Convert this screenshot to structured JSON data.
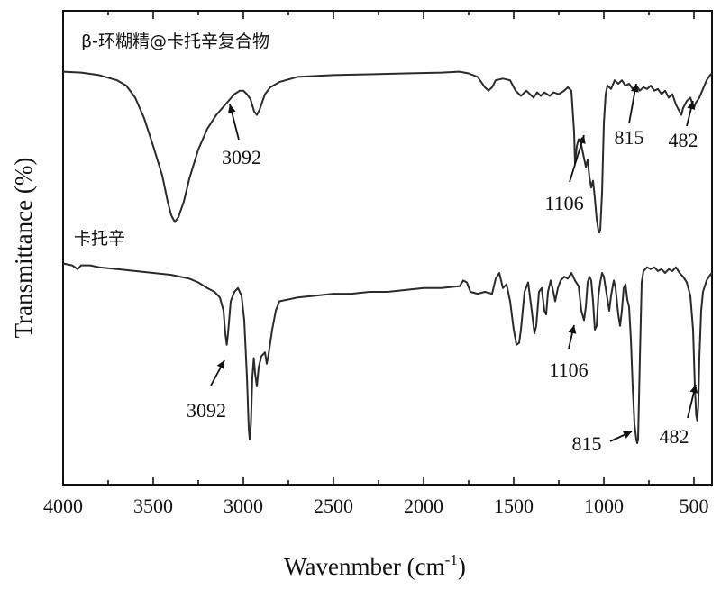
{
  "chart_data": {
    "type": "line",
    "title": "",
    "xlabel": "Wavenmber (cm",
    "xlabel_sup": "-1",
    "xlabel_close": ")",
    "ylabel": "Transmittance (%)",
    "xlim": [
      4000,
      400
    ],
    "x_reversed": true,
    "x_ticks": [
      4000,
      3500,
      3000,
      2500,
      2000,
      1500,
      1000,
      500
    ],
    "y_ticks_visible": false,
    "grid": false,
    "series": [
      {
        "name": "β-环糊精@卡托辛复合物",
        "points": [
          [
            4000,
            0.95
          ],
          [
            3900,
            0.945
          ],
          [
            3800,
            0.93
          ],
          [
            3700,
            0.9
          ],
          [
            3650,
            0.87
          ],
          [
            3600,
            0.8
          ],
          [
            3550,
            0.68
          ],
          [
            3500,
            0.52
          ],
          [
            3450,
            0.35
          ],
          [
            3420,
            0.2
          ],
          [
            3400,
            0.12
          ],
          [
            3380,
            0.08
          ],
          [
            3360,
            0.11
          ],
          [
            3330,
            0.2
          ],
          [
            3300,
            0.33
          ],
          [
            3250,
            0.5
          ],
          [
            3200,
            0.62
          ],
          [
            3150,
            0.7
          ],
          [
            3100,
            0.76
          ],
          [
            3050,
            0.82
          ],
          [
            3020,
            0.84
          ],
          [
            3000,
            0.84
          ],
          [
            2980,
            0.82
          ],
          [
            2960,
            0.79
          ],
          [
            2940,
            0.72
          ],
          [
            2925,
            0.7
          ],
          [
            2910,
            0.73
          ],
          [
            2880,
            0.82
          ],
          [
            2850,
            0.86
          ],
          [
            2800,
            0.89
          ],
          [
            2700,
            0.92
          ],
          [
            2500,
            0.93
          ],
          [
            2300,
            0.935
          ],
          [
            2100,
            0.94
          ],
          [
            1900,
            0.945
          ],
          [
            1800,
            0.95
          ],
          [
            1750,
            0.94
          ],
          [
            1700,
            0.92
          ],
          [
            1660,
            0.86
          ],
          [
            1640,
            0.84
          ],
          [
            1620,
            0.86
          ],
          [
            1600,
            0.9
          ],
          [
            1560,
            0.91
          ],
          [
            1520,
            0.9
          ],
          [
            1490,
            0.84
          ],
          [
            1460,
            0.81
          ],
          [
            1430,
            0.84
          ],
          [
            1410,
            0.82
          ],
          [
            1390,
            0.8
          ],
          [
            1370,
            0.83
          ],
          [
            1350,
            0.81
          ],
          [
            1330,
            0.83
          ],
          [
            1300,
            0.81
          ],
          [
            1280,
            0.83
          ],
          [
            1250,
            0.82
          ],
          [
            1220,
            0.84
          ],
          [
            1200,
            0.86
          ],
          [
            1180,
            0.84
          ],
          [
            1165,
            0.6
          ],
          [
            1160,
            0.42
          ],
          [
            1150,
            0.52
          ],
          [
            1140,
            0.56
          ],
          [
            1130,
            0.55
          ],
          [
            1120,
            0.5
          ],
          [
            1110,
            0.45
          ],
          [
            1100,
            0.4
          ],
          [
            1090,
            0.44
          ],
          [
            1080,
            0.34
          ],
          [
            1070,
            0.28
          ],
          [
            1060,
            0.32
          ],
          [
            1050,
            0.22
          ],
          [
            1040,
            0.1
          ],
          [
            1030,
            0.03
          ],
          [
            1025,
            0.02
          ],
          [
            1020,
            0.03
          ],
          [
            1010,
            0.25
          ],
          [
            1000,
            0.65
          ],
          [
            990,
            0.82
          ],
          [
            980,
            0.87
          ],
          [
            960,
            0.85
          ],
          [
            940,
            0.9
          ],
          [
            920,
            0.88
          ],
          [
            900,
            0.9
          ],
          [
            880,
            0.87
          ],
          [
            860,
            0.88
          ],
          [
            840,
            0.85
          ],
          [
            820,
            0.87
          ],
          [
            800,
            0.84
          ],
          [
            780,
            0.86
          ],
          [
            760,
            0.85
          ],
          [
            740,
            0.87
          ],
          [
            720,
            0.84
          ],
          [
            700,
            0.85
          ],
          [
            680,
            0.82
          ],
          [
            660,
            0.84
          ],
          [
            640,
            0.8
          ],
          [
            620,
            0.82
          ],
          [
            600,
            0.76
          ],
          [
            580,
            0.72
          ],
          [
            570,
            0.7
          ],
          [
            560,
            0.74
          ],
          [
            540,
            0.78
          ],
          [
            520,
            0.8
          ],
          [
            500,
            0.74
          ],
          [
            490,
            0.77
          ],
          [
            470,
            0.8
          ],
          [
            450,
            0.85
          ],
          [
            430,
            0.9
          ],
          [
            410,
            0.93
          ],
          [
            400,
            0.94
          ]
        ]
      },
      {
        "name": "卡托辛",
        "points": [
          [
            4000,
            0.95
          ],
          [
            3950,
            0.94
          ],
          [
            3920,
            0.92
          ],
          [
            3900,
            0.94
          ],
          [
            3850,
            0.94
          ],
          [
            3800,
            0.93
          ],
          [
            3700,
            0.92
          ],
          [
            3600,
            0.91
          ],
          [
            3500,
            0.9
          ],
          [
            3400,
            0.89
          ],
          [
            3300,
            0.87
          ],
          [
            3250,
            0.85
          ],
          [
            3200,
            0.82
          ],
          [
            3160,
            0.8
          ],
          [
            3130,
            0.77
          ],
          [
            3110,
            0.7
          ],
          [
            3100,
            0.58
          ],
          [
            3092,
            0.52
          ],
          [
            3085,
            0.58
          ],
          [
            3070,
            0.75
          ],
          [
            3050,
            0.8
          ],
          [
            3030,
            0.82
          ],
          [
            3010,
            0.78
          ],
          [
            2995,
            0.65
          ],
          [
            2980,
            0.35
          ],
          [
            2970,
            0.08
          ],
          [
            2965,
            0.02
          ],
          [
            2958,
            0.1
          ],
          [
            2950,
            0.35
          ],
          [
            2942,
            0.45
          ],
          [
            2935,
            0.37
          ],
          [
            2925,
            0.3
          ],
          [
            2915,
            0.4
          ],
          [
            2900,
            0.46
          ],
          [
            2880,
            0.48
          ],
          [
            2870,
            0.42
          ],
          [
            2860,
            0.47
          ],
          [
            2840,
            0.6
          ],
          [
            2820,
            0.7
          ],
          [
            2800,
            0.75
          ],
          [
            2700,
            0.77
          ],
          [
            2600,
            0.78
          ],
          [
            2500,
            0.79
          ],
          [
            2400,
            0.79
          ],
          [
            2300,
            0.8
          ],
          [
            2200,
            0.8
          ],
          [
            2100,
            0.81
          ],
          [
            2000,
            0.82
          ],
          [
            1900,
            0.82
          ],
          [
            1800,
            0.83
          ],
          [
            1780,
            0.86
          ],
          [
            1760,
            0.85
          ],
          [
            1740,
            0.8
          ],
          [
            1700,
            0.79
          ],
          [
            1660,
            0.8
          ],
          [
            1620,
            0.79
          ],
          [
            1600,
            0.87
          ],
          [
            1580,
            0.9
          ],
          [
            1560,
            0.82
          ],
          [
            1540,
            0.84
          ],
          [
            1520,
            0.75
          ],
          [
            1500,
            0.6
          ],
          [
            1485,
            0.52
          ],
          [
            1470,
            0.53
          ],
          [
            1460,
            0.6
          ],
          [
            1440,
            0.8
          ],
          [
            1420,
            0.85
          ],
          [
            1400,
            0.7
          ],
          [
            1385,
            0.58
          ],
          [
            1375,
            0.62
          ],
          [
            1360,
            0.8
          ],
          [
            1345,
            0.82
          ],
          [
            1330,
            0.7
          ],
          [
            1320,
            0.68
          ],
          [
            1310,
            0.8
          ],
          [
            1295,
            0.86
          ],
          [
            1280,
            0.8
          ],
          [
            1270,
            0.75
          ],
          [
            1255,
            0.82
          ],
          [
            1240,
            0.86
          ],
          [
            1220,
            0.88
          ],
          [
            1200,
            0.87
          ],
          [
            1180,
            0.9
          ],
          [
            1160,
            0.86
          ],
          [
            1140,
            0.83
          ],
          [
            1125,
            0.7
          ],
          [
            1110,
            0.65
          ],
          [
            1100,
            0.72
          ],
          [
            1090,
            0.85
          ],
          [
            1080,
            0.88
          ],
          [
            1070,
            0.86
          ],
          [
            1060,
            0.75
          ],
          [
            1050,
            0.6
          ],
          [
            1040,
            0.62
          ],
          [
            1030,
            0.78
          ],
          [
            1020,
            0.85
          ],
          [
            1010,
            0.9
          ],
          [
            1000,
            0.88
          ],
          [
            990,
            0.82
          ],
          [
            980,
            0.76
          ],
          [
            970,
            0.7
          ],
          [
            960,
            0.78
          ],
          [
            945,
            0.86
          ],
          [
            935,
            0.82
          ],
          [
            920,
            0.68
          ],
          [
            910,
            0.62
          ],
          [
            900,
            0.7
          ],
          [
            890,
            0.82
          ],
          [
            880,
            0.84
          ],
          [
            870,
            0.76
          ],
          [
            860,
            0.72
          ],
          [
            850,
            0.55
          ],
          [
            840,
            0.3
          ],
          [
            830,
            0.1
          ],
          [
            820,
            0.02
          ],
          [
            815,
            0.0
          ],
          [
            810,
            0.02
          ],
          [
            800,
            0.45
          ],
          [
            790,
            0.85
          ],
          [
            780,
            0.91
          ],
          [
            760,
            0.93
          ],
          [
            740,
            0.92
          ],
          [
            720,
            0.93
          ],
          [
            700,
            0.91
          ],
          [
            680,
            0.92
          ],
          [
            660,
            0.9
          ],
          [
            640,
            0.92
          ],
          [
            620,
            0.91
          ],
          [
            600,
            0.93
          ],
          [
            580,
            0.9
          ],
          [
            560,
            0.88
          ],
          [
            540,
            0.85
          ],
          [
            520,
            0.78
          ],
          [
            505,
            0.6
          ],
          [
            495,
            0.3
          ],
          [
            488,
            0.15
          ],
          [
            482,
            0.12
          ],
          [
            476,
            0.2
          ],
          [
            470,
            0.45
          ],
          [
            460,
            0.7
          ],
          [
            450,
            0.8
          ],
          [
            430,
            0.86
          ],
          [
            410,
            0.89
          ],
          [
            400,
            0.9
          ]
        ]
      }
    ],
    "annotations": [
      {
        "series": 0,
        "text": "3092",
        "x": 3092
      },
      {
        "series": 0,
        "text": "1106",
        "x": 1106
      },
      {
        "series": 0,
        "text": "815",
        "x": 815
      },
      {
        "series": 0,
        "text": "482",
        "x": 482
      },
      {
        "series": 1,
        "text": "3092",
        "x": 3092
      },
      {
        "series": 1,
        "text": "1106",
        "x": 1106
      },
      {
        "series": 1,
        "text": "815",
        "x": 815
      },
      {
        "series": 1,
        "text": "482",
        "x": 482
      }
    ]
  }
}
